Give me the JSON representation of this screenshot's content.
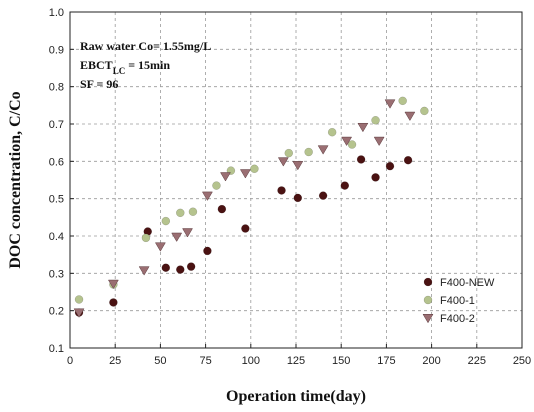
{
  "chart_data": {
    "type": "scatter",
    "title": "",
    "xlabel": "Operation time(day)",
    "ylabel": "DOC concentration, C/Co",
    "xlim": [
      0,
      250
    ],
    "ylim": [
      0.1,
      1.0
    ],
    "x_ticks": [
      "0",
      "25",
      "50",
      "75",
      "100",
      "125",
      "150",
      "175",
      "200",
      "225",
      "250"
    ],
    "y_ticks": [
      "0.1",
      "0.2",
      "0.3",
      "0.4",
      "0.5",
      "0.6",
      "0.7",
      "0.8",
      "0.9",
      "1.0"
    ],
    "grid": true,
    "legend_position": "bottom-right",
    "annotations": [
      {
        "parts": [
          {
            "text": "Raw water Co= 1.55mg/L"
          }
        ]
      },
      {
        "parts": [
          {
            "text": "EBCT"
          },
          {
            "text": "LC",
            "sub": true
          },
          {
            "text": " = 15min"
          }
        ]
      },
      {
        "parts": [
          {
            "text": "SF = 96"
          }
        ]
      }
    ],
    "series": [
      {
        "name": "F400-NEW",
        "marker": "circle",
        "color": "#4a1212",
        "points": [
          [
            5,
            0.195
          ],
          [
            24,
            0.222
          ],
          [
            43,
            0.412
          ],
          [
            53,
            0.315
          ],
          [
            61,
            0.31
          ],
          [
            67,
            0.318
          ],
          [
            76,
            0.36
          ],
          [
            84,
            0.472
          ],
          [
            97,
            0.42
          ],
          [
            117,
            0.522
          ],
          [
            126,
            0.502
          ],
          [
            140,
            0.508
          ],
          [
            152,
            0.535
          ],
          [
            161,
            0.605
          ],
          [
            169,
            0.557
          ],
          [
            177,
            0.587
          ],
          [
            187,
            0.603
          ]
        ]
      },
      {
        "name": "F400-1",
        "marker": "circle",
        "color": "#b5c38e",
        "points": [
          [
            5,
            0.23
          ],
          [
            24,
            0.27
          ],
          [
            42,
            0.395
          ],
          [
            53,
            0.44
          ],
          [
            61,
            0.462
          ],
          [
            68,
            0.465
          ],
          [
            81,
            0.535
          ],
          [
            89,
            0.575
          ],
          [
            102,
            0.58
          ],
          [
            121,
            0.622
          ],
          [
            132,
            0.625
          ],
          [
            145,
            0.678
          ],
          [
            156,
            0.645
          ],
          [
            169,
            0.71
          ],
          [
            184,
            0.762
          ],
          [
            196,
            0.735
          ]
        ]
      },
      {
        "name": "F400-2",
        "marker": "triangle-down",
        "color": "#9a6e72",
        "points": [
          [
            5,
            0.195
          ],
          [
            24,
            0.272
          ],
          [
            41,
            0.308
          ],
          [
            50,
            0.372
          ],
          [
            59,
            0.398
          ],
          [
            65,
            0.41
          ],
          [
            76,
            0.508
          ],
          [
            86,
            0.56
          ],
          [
            97,
            0.568
          ],
          [
            118,
            0.6
          ],
          [
            126,
            0.59
          ],
          [
            140,
            0.632
          ],
          [
            153,
            0.655
          ],
          [
            162,
            0.692
          ],
          [
            171,
            0.655
          ],
          [
            177,
            0.755
          ],
          [
            188,
            0.722
          ]
        ]
      }
    ]
  }
}
